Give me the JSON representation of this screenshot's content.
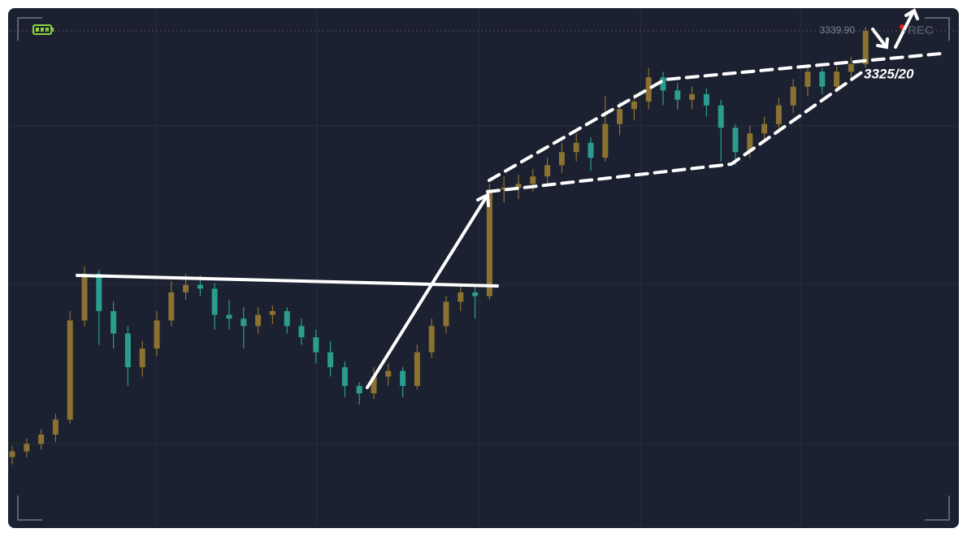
{
  "chart_data": {
    "type": "candlestick",
    "ylim": [
      3074,
      3352
    ],
    "up_color": "#8c7231",
    "down_color": "#2a9d8f",
    "price_label": {
      "value": 3339.9,
      "label": "3339.90"
    },
    "annotation": "3325/20",
    "status": "REC",
    "ohlc": [
      [
        3112,
        3118,
        3108,
        3115
      ],
      [
        3115,
        3122,
        3112,
        3119
      ],
      [
        3119,
        3127,
        3116,
        3124
      ],
      [
        3124,
        3135,
        3120,
        3132
      ],
      [
        3132,
        3190,
        3130,
        3185
      ],
      [
        3185,
        3214,
        3182,
        3210
      ],
      [
        3210,
        3212,
        3172,
        3190
      ],
      [
        3190,
        3195,
        3170,
        3178
      ],
      [
        3178,
        3182,
        3150,
        3160
      ],
      [
        3160,
        3174,
        3155,
        3170
      ],
      [
        3170,
        3190,
        3166,
        3185
      ],
      [
        3185,
        3206,
        3182,
        3200
      ],
      [
        3200,
        3210,
        3196,
        3204
      ],
      [
        3204,
        3209,
        3198,
        3202
      ],
      [
        3202,
        3205,
        3180,
        3188
      ],
      [
        3188,
        3196,
        3180,
        3186
      ],
      [
        3186,
        3192,
        3170,
        3182
      ],
      [
        3182,
        3192,
        3178,
        3188
      ],
      [
        3188,
        3193,
        3183,
        3190
      ],
      [
        3190,
        3192,
        3178,
        3182
      ],
      [
        3182,
        3186,
        3172,
        3176
      ],
      [
        3176,
        3180,
        3162,
        3168
      ],
      [
        3168,
        3174,
        3155,
        3160
      ],
      [
        3160,
        3163,
        3144,
        3150
      ],
      [
        3150,
        3152,
        3140,
        3146
      ],
      [
        3146,
        3160,
        3143,
        3155
      ],
      [
        3155,
        3162,
        3150,
        3158
      ],
      [
        3158,
        3160,
        3144,
        3150
      ],
      [
        3150,
        3172,
        3148,
        3168
      ],
      [
        3168,
        3186,
        3165,
        3182
      ],
      [
        3182,
        3198,
        3178,
        3195
      ],
      [
        3195,
        3203,
        3190,
        3200
      ],
      [
        3200,
        3204,
        3186,
        3198
      ],
      [
        3198,
        3258,
        3196,
        3255
      ],
      [
        3255,
        3262,
        3248,
        3256
      ],
      [
        3256,
        3263,
        3250,
        3258
      ],
      [
        3258,
        3266,
        3254,
        3262
      ],
      [
        3262,
        3272,
        3258,
        3268
      ],
      [
        3268,
        3280,
        3264,
        3275
      ],
      [
        3275,
        3285,
        3270,
        3280
      ],
      [
        3280,
        3283,
        3265,
        3272
      ],
      [
        3272,
        3305,
        3270,
        3290
      ],
      [
        3290,
        3302,
        3284,
        3298
      ],
      [
        3298,
        3306,
        3292,
        3302
      ],
      [
        3302,
        3320,
        3298,
        3315
      ],
      [
        3315,
        3318,
        3300,
        3308
      ],
      [
        3308,
        3312,
        3298,
        3303
      ],
      [
        3303,
        3310,
        3298,
        3306
      ],
      [
        3306,
        3309,
        3294,
        3300
      ],
      [
        3300,
        3303,
        3270,
        3288
      ],
      [
        3288,
        3290,
        3268,
        3275
      ],
      [
        3275,
        3289,
        3272,
        3285
      ],
      [
        3285,
        3294,
        3280,
        3290
      ],
      [
        3290,
        3304,
        3286,
        3300
      ],
      [
        3300,
        3314,
        3296,
        3310
      ],
      [
        3310,
        3322,
        3305,
        3318
      ],
      [
        3318,
        3320,
        3306,
        3310
      ],
      [
        3310,
        3321,
        3307,
        3318
      ],
      [
        3318,
        3326,
        3314,
        3322
      ],
      [
        3322,
        3342,
        3320,
        3339.9
      ]
    ]
  }
}
